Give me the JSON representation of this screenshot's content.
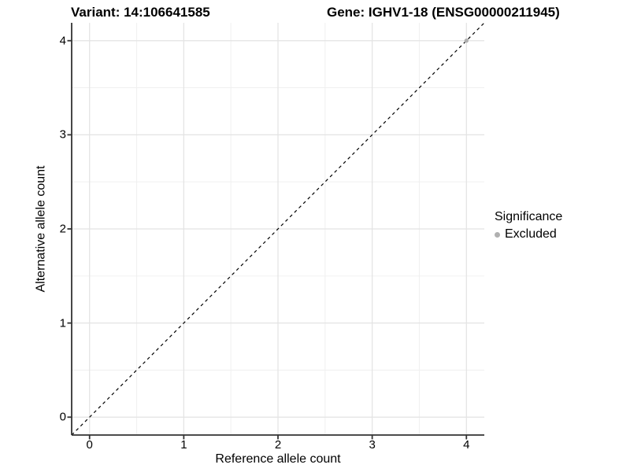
{
  "titles": {
    "variant": "Variant: 14:106641585",
    "gene": "Gene: IGHV1-18 (ENSG00000211945)"
  },
  "chart_data": {
    "type": "scatter",
    "title": "Variant: 14:106641585 | Gene: IGHV1-18 (ENSG00000211945)",
    "xlabel": "Reference allele count",
    "ylabel": "Alternative allele count",
    "xlim": [
      -0.19,
      4.19
    ],
    "ylim": [
      -0.19,
      4.19
    ],
    "x_ticks": [
      0,
      1,
      2,
      3,
      4
    ],
    "y_ticks": [
      0,
      1,
      2,
      3,
      4
    ],
    "x_minor_ticks": [
      0.5,
      1.5,
      2.5,
      3.5
    ],
    "y_minor_ticks": [
      0.5,
      1.5,
      2.5,
      3.5
    ],
    "grid": true,
    "legend_position": "right",
    "series": [
      {
        "name": "Excluded",
        "color": "#b0b0b0",
        "points": [
          {
            "x": 4,
            "y": 4
          }
        ]
      }
    ],
    "reference_line": {
      "type": "identity",
      "slope": 1,
      "intercept": 0,
      "style": "dashed",
      "color": "#000000"
    },
    "legend": {
      "title": "Significance",
      "items": [
        {
          "label": "Excluded",
          "color": "#b0b0b0"
        }
      ]
    }
  },
  "colors": {
    "background": "#ffffff",
    "grid_major": "#e3e3e3",
    "grid_minor": "#f0f0f0",
    "axis_line": "#333333",
    "point_excluded": "#b0b0b0",
    "dashed_line": "#000000"
  }
}
